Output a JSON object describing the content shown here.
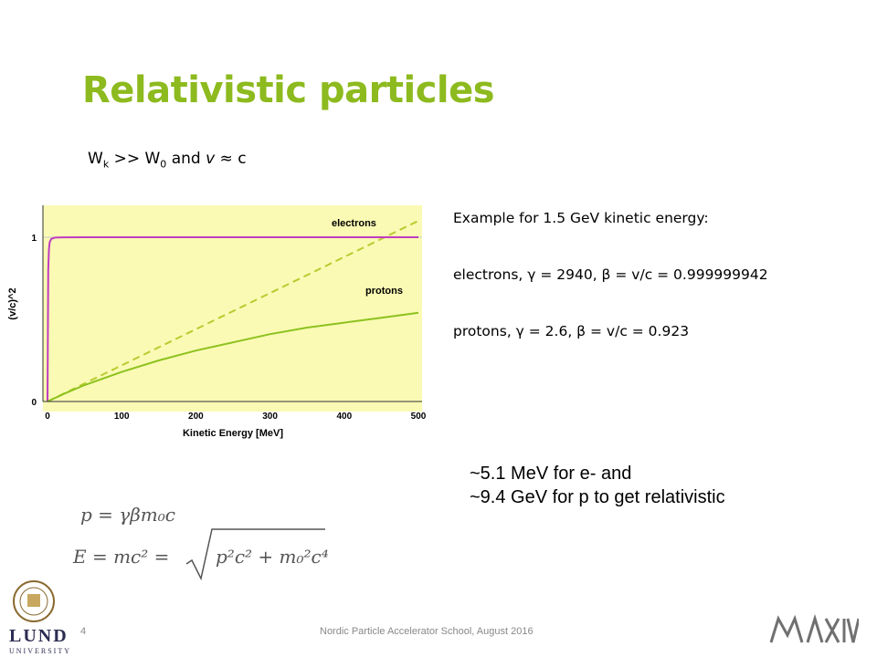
{
  "slide": {
    "title": "Relativistic particles",
    "condition": {
      "w": "W",
      "k": "k",
      "gg": " >> W",
      "zero": "0",
      "and": " and ",
      "v": "v",
      "approx": " ≈ c"
    },
    "example": {
      "heading": "Example for 1.5 GeV kinetic energy:",
      "electrons": "electrons, γ = 2940, β = v/c = 0.999999942",
      "protons": "protons, γ = 2.6, β = v/c = 0.923"
    },
    "note": {
      "line1": "~5.1 MeV for e- and",
      "line2": "~9.4 GeV for p to get relativistic"
    },
    "formulas": {
      "momentum": "p = γβm₀c",
      "energy_lhs": "E = mc² =",
      "energy_rhs": "p²c² + m₀²c⁴"
    },
    "footer": {
      "page": "4",
      "text": "Nordic Particle Accelerator School, August 2016"
    },
    "logos": {
      "left_line1": "LUND",
      "left_line2": "UNIVERSITY",
      "right": "MAX IV"
    }
  },
  "chart_data": {
    "type": "line",
    "xlabel": "Kinetic Energy [MeV]",
    "ylabel": "(v/c)^2",
    "xlim": [
      0,
      500
    ],
    "ylim": [
      0,
      1.2
    ],
    "x_ticks": [
      0,
      100,
      200,
      300,
      400,
      500
    ],
    "y_ticks": [
      0,
      1
    ],
    "background": "#fafab4",
    "series": [
      {
        "name": "electrons",
        "color": "#c03cc0",
        "x": [
          0,
          1,
          2,
          3,
          5,
          10,
          20,
          50,
          100,
          200,
          300,
          400,
          500
        ],
        "y": [
          0,
          0.8,
          0.93,
          0.97,
          0.99,
          0.998,
          0.9995,
          1.0,
          1.0,
          1.0,
          1.0,
          1.0,
          1.0
        ]
      },
      {
        "name": "protons",
        "color": "#8dc21f",
        "x": [
          0,
          25,
          50,
          100,
          150,
          200,
          250,
          300,
          350,
          400,
          450,
          500
        ],
        "y": [
          0,
          0.052,
          0.1,
          0.18,
          0.25,
          0.31,
          0.36,
          0.41,
          0.45,
          0.48,
          0.51,
          0.54
        ]
      }
    ],
    "reference_line": {
      "color": "#b8cc30",
      "style": "dashed",
      "x": [
        0,
        500
      ],
      "y": [
        0,
        1.1
      ]
    }
  }
}
